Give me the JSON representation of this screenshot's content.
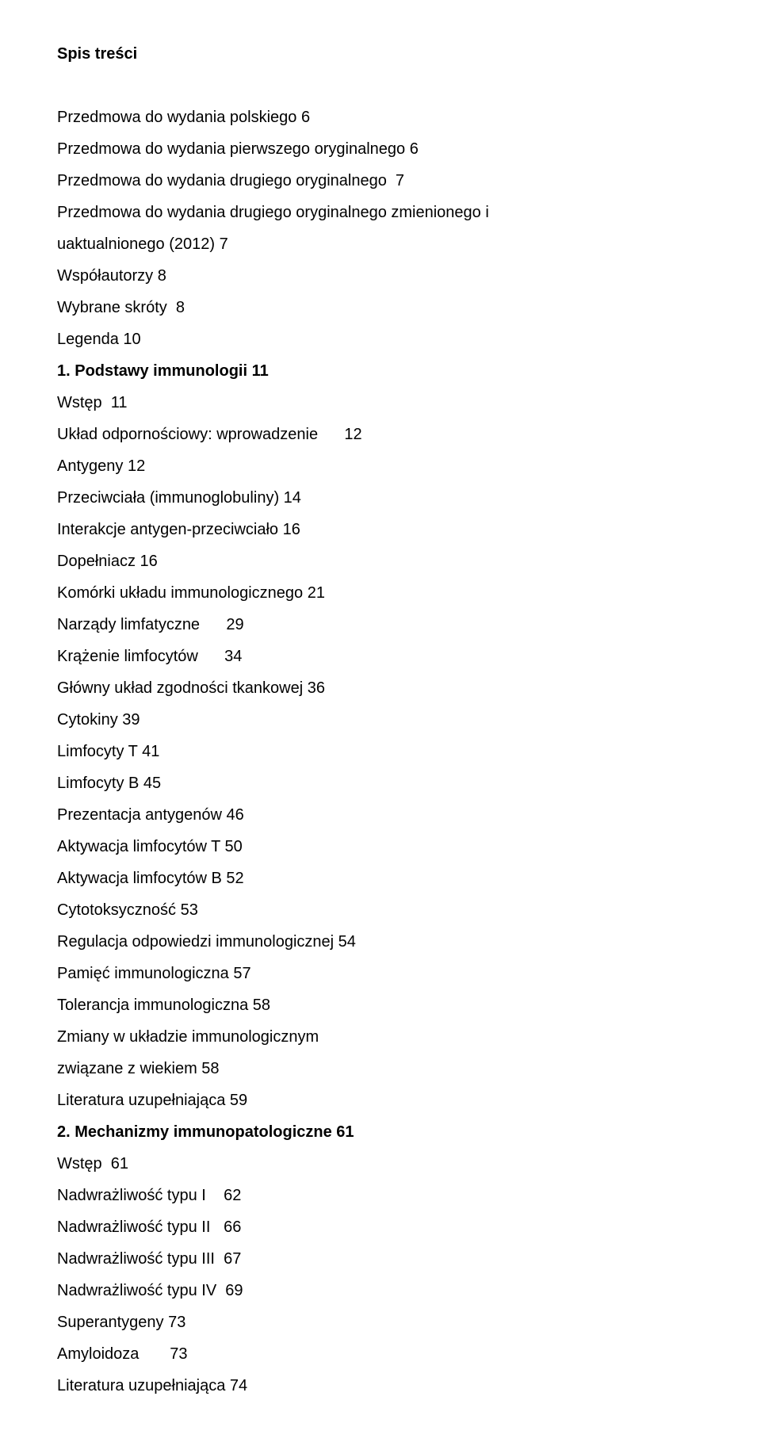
{
  "title": "Spis treści",
  "entries": [
    {
      "text": "Przedmowa do wydania polskiego 6",
      "bold": false,
      "blank_before": true
    },
    {
      "text": "Przedmowa do wydania pierwszego oryginalnego 6",
      "bold": false
    },
    {
      "text": "Przedmowa do wydania drugiego oryginalnego  7",
      "bold": false
    },
    {
      "text": "Przedmowa do wydania drugiego oryginalnego zmienionego i",
      "bold": false
    },
    {
      "text": "uaktualnionego (2012) 7",
      "bold": false
    },
    {
      "text": "Współautorzy 8",
      "bold": false
    },
    {
      "text": "Wybrane skróty  8",
      "bold": false
    },
    {
      "text": "Legenda 10",
      "bold": false
    },
    {
      "text": "1. Podstawy immunologii 11",
      "bold": true
    },
    {
      "text": "Wstęp  11",
      "bold": false
    },
    {
      "text": "Układ odpornościowy: wprowadzenie      12",
      "bold": false
    },
    {
      "text": "Antygeny 12",
      "bold": false
    },
    {
      "text": "Przeciwciała (immunoglobuliny) 14",
      "bold": false
    },
    {
      "text": "Interakcje antygen-przeciwciało 16",
      "bold": false
    },
    {
      "text": "Dopełniacz 16",
      "bold": false
    },
    {
      "text": "Komórki układu immunologicznego 21",
      "bold": false
    },
    {
      "text": "Narządy limfatyczne      29",
      "bold": false
    },
    {
      "text": "Krążenie limfocytów      34",
      "bold": false
    },
    {
      "text": "Główny układ zgodności tkankowej 36",
      "bold": false
    },
    {
      "text": "Cytokiny 39",
      "bold": false
    },
    {
      "text": "Limfocyty T 41",
      "bold": false
    },
    {
      "text": "Limfocyty B 45",
      "bold": false
    },
    {
      "text": "Prezentacja antygenów 46",
      "bold": false
    },
    {
      "text": "Aktywacja limfocytów T 50",
      "bold": false
    },
    {
      "text": "Aktywacja limfocytów B 52",
      "bold": false
    },
    {
      "text": "Cytotoksyczność 53",
      "bold": false
    },
    {
      "text": "Regulacja odpowiedzi immunologicznej 54",
      "bold": false
    },
    {
      "text": "Pamięć immunologiczna 57",
      "bold": false
    },
    {
      "text": "Tolerancja immunologiczna 58",
      "bold": false
    },
    {
      "text": "Zmiany w układzie immunologicznym",
      "bold": false
    },
    {
      "text": "związane z wiekiem 58",
      "bold": false
    },
    {
      "text": "Literatura uzupełniająca 59",
      "bold": false
    },
    {
      "text": "2. Mechanizmy immunopatologiczne 61",
      "bold": true
    },
    {
      "text": "Wstęp  61",
      "bold": false
    },
    {
      "text": "Nadwrażliwość typu I    62",
      "bold": false
    },
    {
      "text": "Nadwrażliwość typu II   66",
      "bold": false
    },
    {
      "text": "Nadwrażliwość typu III  67",
      "bold": false
    },
    {
      "text": "Nadwrażliwość typu IV  69",
      "bold": false
    },
    {
      "text": "Superantygeny 73",
      "bold": false
    },
    {
      "text": "Amyloidoza       73",
      "bold": false
    },
    {
      "text": "Literatura uzupełniająca 74",
      "bold": false
    }
  ],
  "style": {
    "font_family": "Arial",
    "font_size_pt": 15,
    "text_color": "#000000",
    "background_color": "#ffffff",
    "line_height": 2.0
  }
}
